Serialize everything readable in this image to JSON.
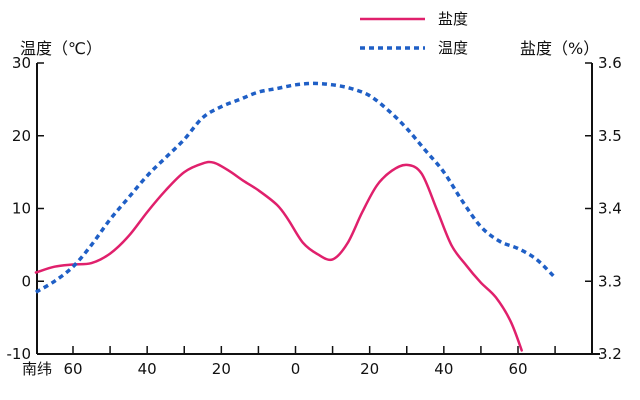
{
  "chart_data": {
    "type": "line",
    "y_left_label": "温度（℃）",
    "y_right_label": "盐度（%）",
    "y_left_ticks": [
      30,
      20,
      10,
      0,
      -10
    ],
    "y_right_ticks": [
      "3.6",
      "3.5",
      "3.4",
      "3.3",
      "3.2"
    ],
    "x_tick_labels": [
      {
        "lat": -60,
        "text": "60"
      },
      {
        "lat": -40,
        "text": "40"
      },
      {
        "lat": -20,
        "text": "20"
      },
      {
        "lat": 0,
        "text": "0"
      },
      {
        "lat": 20,
        "text": "20"
      },
      {
        "lat": 40,
        "text": "40"
      },
      {
        "lat": 60,
        "text": "60"
      }
    ],
    "x_prefix": "南纬",
    "xlim": [
      -70,
      80
    ],
    "ylim_left": [
      -10,
      30
    ],
    "ylim_right": [
      3.2,
      3.6
    ],
    "legend_position": "top-right",
    "series": [
      {
        "name": "盐度",
        "axis": "right",
        "color": "#e0206c",
        "style": "solid",
        "points": [
          [
            -70,
            3.312
          ],
          [
            -65,
            3.32
          ],
          [
            -60,
            3.323
          ],
          [
            -55,
            3.325
          ],
          [
            -50,
            3.338
          ],
          [
            -45,
            3.362
          ],
          [
            -40,
            3.395
          ],
          [
            -35,
            3.425
          ],
          [
            -30,
            3.45
          ],
          [
            -25,
            3.462
          ],
          [
            -22,
            3.463
          ],
          [
            -18,
            3.452
          ],
          [
            -14,
            3.438
          ],
          [
            -10,
            3.425
          ],
          [
            -5,
            3.405
          ],
          [
            -2,
            3.385
          ],
          [
            2,
            3.353
          ],
          [
            6,
            3.337
          ],
          [
            10,
            3.33
          ],
          [
            14,
            3.352
          ],
          [
            18,
            3.395
          ],
          [
            22,
            3.432
          ],
          [
            26,
            3.452
          ],
          [
            30,
            3.46
          ],
          [
            34,
            3.448
          ],
          [
            38,
            3.4
          ],
          [
            42,
            3.35
          ],
          [
            46,
            3.322
          ],
          [
            50,
            3.298
          ],
          [
            54,
            3.278
          ],
          [
            58,
            3.245
          ],
          [
            61,
            3.205
          ]
        ]
      },
      {
        "name": "温度",
        "axis": "left",
        "color": "#1f5fc6",
        "style": "dashed",
        "points": [
          [
            -70,
            -1.5
          ],
          [
            -65,
            0
          ],
          [
            -60,
            2
          ],
          [
            -55,
            5
          ],
          [
            -50,
            8.5
          ],
          [
            -45,
            11.5
          ],
          [
            -40,
            14.5
          ],
          [
            -35,
            17
          ],
          [
            -30,
            19.5
          ],
          [
            -25,
            22.5
          ],
          [
            -20,
            24
          ],
          [
            -15,
            25
          ],
          [
            -10,
            26
          ],
          [
            -5,
            26.5
          ],
          [
            0,
            27
          ],
          [
            5,
            27.2
          ],
          [
            10,
            27
          ],
          [
            15,
            26.5
          ],
          [
            20,
            25.5
          ],
          [
            25,
            23.5
          ],
          [
            30,
            21
          ],
          [
            35,
            18
          ],
          [
            40,
            15
          ],
          [
            45,
            11
          ],
          [
            50,
            7.5
          ],
          [
            55,
            5.5
          ],
          [
            60,
            4.5
          ],
          [
            65,
            3
          ],
          [
            70,
            0.5
          ]
        ]
      }
    ]
  }
}
